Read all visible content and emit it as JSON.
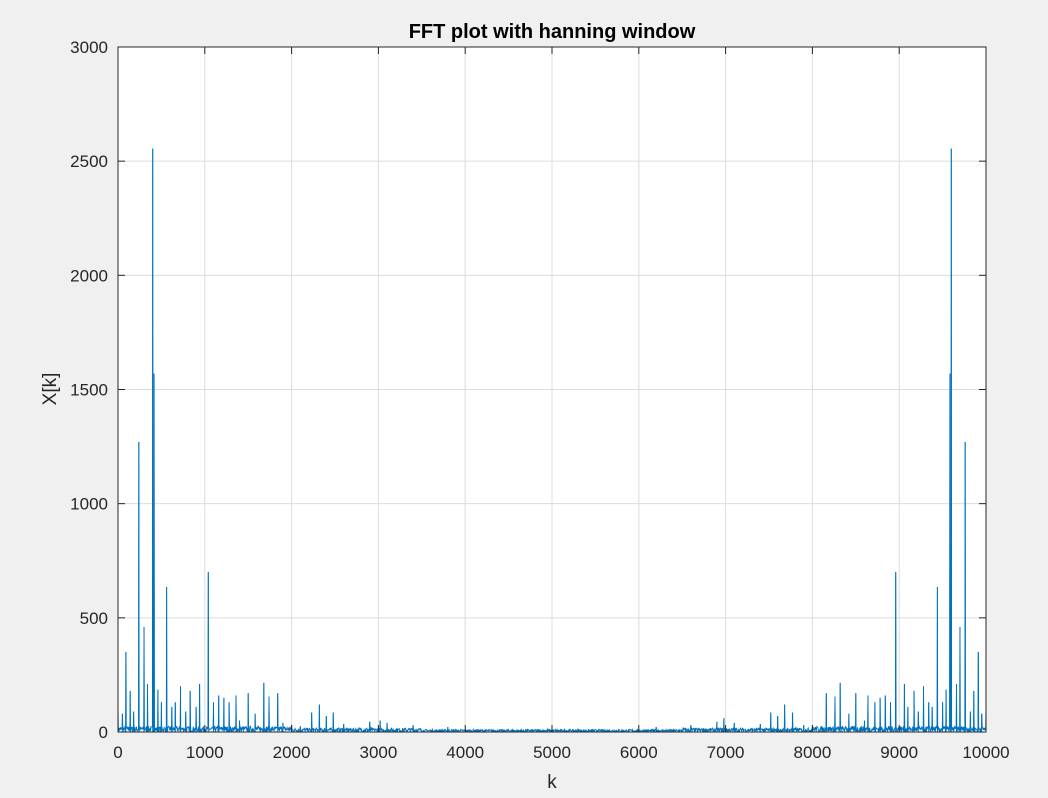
{
  "chart_data": {
    "type": "line",
    "title": "FFT plot with hanning window",
    "xlabel": "k",
    "ylabel": "X[k]",
    "xlim": [
      0,
      10000
    ],
    "ylim": [
      0,
      3000
    ],
    "xticks": [
      0,
      1000,
      2000,
      3000,
      4000,
      5000,
      6000,
      7000,
      8000,
      9000,
      10000
    ],
    "yticks": [
      0,
      500,
      1000,
      1500,
      2000,
      2500,
      3000
    ],
    "grid": true,
    "colors": {
      "line": "#0072bd",
      "axes_bg": "#ffffff",
      "figure_bg": "#f0f0f0",
      "grid": "#dcdcdc",
      "axis": "#262626"
    },
    "series": [
      {
        "baseline_max": 25,
        "peaks": [
          {
            "x": 0,
            "y": 110
          },
          {
            "x": 50,
            "y": 80
          },
          {
            "x": 90,
            "y": 350
          },
          {
            "x": 140,
            "y": 180
          },
          {
            "x": 180,
            "y": 90
          },
          {
            "x": 240,
            "y": 1270
          },
          {
            "x": 300,
            "y": 460
          },
          {
            "x": 340,
            "y": 210
          },
          {
            "x": 400,
            "y": 2555
          },
          {
            "x": 415,
            "y": 1570
          },
          {
            "x": 460,
            "y": 185
          },
          {
            "x": 500,
            "y": 130
          },
          {
            "x": 560,
            "y": 635
          },
          {
            "x": 620,
            "y": 110
          },
          {
            "x": 660,
            "y": 130
          },
          {
            "x": 720,
            "y": 200
          },
          {
            "x": 780,
            "y": 90
          },
          {
            "x": 830,
            "y": 180
          },
          {
            "x": 900,
            "y": 110
          },
          {
            "x": 940,
            "y": 210
          },
          {
            "x": 1040,
            "y": 700
          },
          {
            "x": 1100,
            "y": 130
          },
          {
            "x": 1160,
            "y": 160
          },
          {
            "x": 1220,
            "y": 150
          },
          {
            "x": 1280,
            "y": 130
          },
          {
            "x": 1360,
            "y": 160
          },
          {
            "x": 1400,
            "y": 50
          },
          {
            "x": 1500,
            "y": 170
          },
          {
            "x": 1580,
            "y": 80
          },
          {
            "x": 1680,
            "y": 215
          },
          {
            "x": 1740,
            "y": 155
          },
          {
            "x": 1840,
            "y": 170
          },
          {
            "x": 1900,
            "y": 40
          },
          {
            "x": 2000,
            "y": 30
          },
          {
            "x": 2100,
            "y": 25
          },
          {
            "x": 2230,
            "y": 85
          },
          {
            "x": 2320,
            "y": 120
          },
          {
            "x": 2400,
            "y": 70
          },
          {
            "x": 2480,
            "y": 85
          },
          {
            "x": 2600,
            "y": 35
          },
          {
            "x": 2900,
            "y": 45
          },
          {
            "x": 3020,
            "y": 50
          },
          {
            "x": 3100,
            "y": 40
          },
          {
            "x": 3400,
            "y": 30
          },
          {
            "x": 3800,
            "y": 22
          },
          {
            "x": 6200,
            "y": 22
          },
          {
            "x": 6600,
            "y": 30
          },
          {
            "x": 6900,
            "y": 45
          },
          {
            "x": 6980,
            "y": 60
          },
          {
            "x": 7100,
            "y": 40
          },
          {
            "x": 7400,
            "y": 35
          },
          {
            "x": 7520,
            "y": 85
          },
          {
            "x": 7600,
            "y": 70
          },
          {
            "x": 7680,
            "y": 120
          },
          {
            "x": 7770,
            "y": 85
          },
          {
            "x": 7900,
            "y": 30
          },
          {
            "x": 8000,
            "y": 25
          },
          {
            "x": 8160,
            "y": 170
          },
          {
            "x": 8260,
            "y": 155
          },
          {
            "x": 8320,
            "y": 215
          },
          {
            "x": 8420,
            "y": 80
          },
          {
            "x": 8500,
            "y": 170
          },
          {
            "x": 8600,
            "y": 50
          },
          {
            "x": 8640,
            "y": 160
          },
          {
            "x": 8720,
            "y": 130
          },
          {
            "x": 8780,
            "y": 150
          },
          {
            "x": 8840,
            "y": 160
          },
          {
            "x": 8900,
            "y": 130
          },
          {
            "x": 8960,
            "y": 700
          },
          {
            "x": 9060,
            "y": 210
          },
          {
            "x": 9100,
            "y": 110
          },
          {
            "x": 9170,
            "y": 180
          },
          {
            "x": 9220,
            "y": 90
          },
          {
            "x": 9280,
            "y": 200
          },
          {
            "x": 9340,
            "y": 130
          },
          {
            "x": 9380,
            "y": 110
          },
          {
            "x": 9440,
            "y": 635
          },
          {
            "x": 9500,
            "y": 130
          },
          {
            "x": 9540,
            "y": 185
          },
          {
            "x": 9585,
            "y": 1570
          },
          {
            "x": 9600,
            "y": 2555
          },
          {
            "x": 9660,
            "y": 210
          },
          {
            "x": 9700,
            "y": 460
          },
          {
            "x": 9760,
            "y": 1270
          },
          {
            "x": 9820,
            "y": 90
          },
          {
            "x": 9860,
            "y": 180
          },
          {
            "x": 9910,
            "y": 350
          },
          {
            "x": 9950,
            "y": 80
          },
          {
            "x": 10000,
            "y": 110
          }
        ]
      }
    ]
  }
}
